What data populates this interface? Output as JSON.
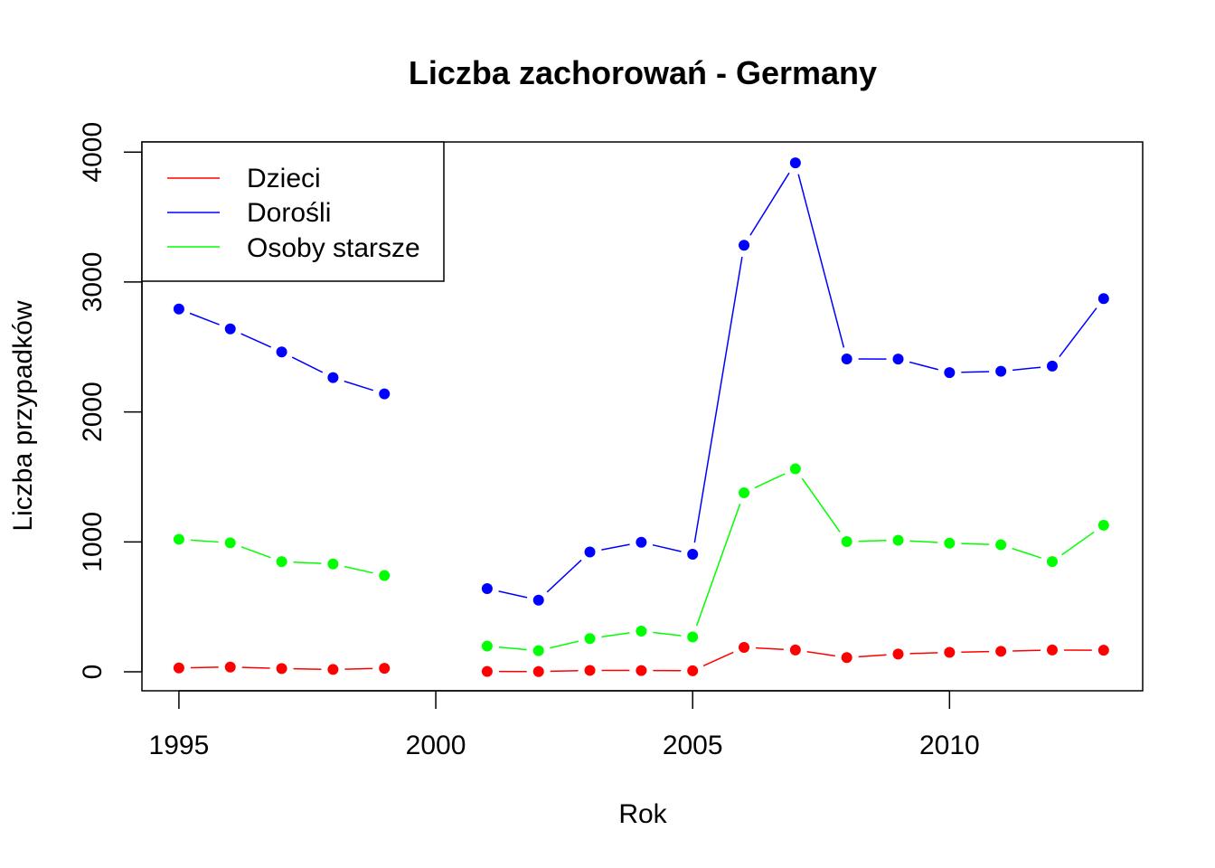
{
  "chart_data": {
    "type": "line",
    "title": "Liczba zachorowań -  Germany",
    "xlabel": "Rok",
    "ylabel": "Liczba przypadków",
    "xlim": [
      1994.28,
      2013.76
    ],
    "ylim": [
      -146,
      4078
    ],
    "x_ticks": [
      1995,
      2000,
      2005,
      2010
    ],
    "y_ticks": [
      0,
      1000,
      2000,
      3000,
      4000
    ],
    "grid": false,
    "legend_position": "top-left",
    "x": [
      1995,
      1996,
      1997,
      1998,
      1999,
      2000,
      2001,
      2002,
      2003,
      2004,
      2005,
      2006,
      2007,
      2008,
      2009,
      2010,
      2011,
      2012,
      2013
    ],
    "series": [
      {
        "name": "Dzieci",
        "color": "#ff0000",
        "values": [
          30,
          37,
          25,
          18,
          27,
          null,
          3,
          2,
          11,
          10,
          8,
          188,
          168,
          110,
          137,
          150,
          158,
          168,
          166
        ]
      },
      {
        "name": "Dorośli",
        "color": "#0000ff",
        "values": [
          2792,
          2639,
          2462,
          2264,
          2139,
          null,
          640,
          552,
          922,
          997,
          905,
          3283,
          3917,
          2408,
          2407,
          2303,
          2313,
          2353,
          2872
        ]
      },
      {
        "name": "Osoby starsze",
        "color": "#00ff00",
        "values": [
          1020,
          993,
          848,
          830,
          741,
          null,
          198,
          163,
          256,
          313,
          268,
          1378,
          1562,
          1002,
          1013,
          990,
          978,
          848,
          1128
        ]
      }
    ]
  }
}
